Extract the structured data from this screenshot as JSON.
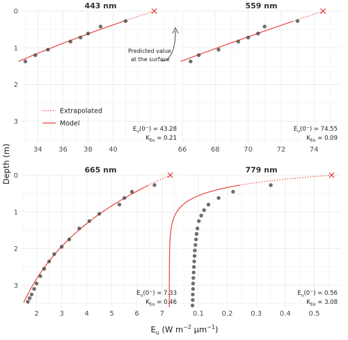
{
  "figure": {
    "ylabel": "Depth (m)",
    "xlabel_main": "E",
    "xlabel_sub": "u",
    "xlabel_units": " (W m",
    "xlabel_sup1": "−2",
    "xlabel_mid": " μm",
    "xlabel_sup2": "−1",
    "xlabel_end": ")"
  },
  "legend": {
    "position": "left, inside top-left panel",
    "items": [
      {
        "label": "Extrapolated",
        "style": "dotted",
        "color": "#e8413a"
      },
      {
        "label": "Model",
        "style": "solid",
        "color": "#e8413a"
      }
    ]
  },
  "callout": {
    "line1": "Predicted value",
    "line2": "at the surface"
  },
  "colors": {
    "model": "#e8413a",
    "points": "#444444",
    "grid": "#ebebeb"
  },
  "chart_data": [
    {
      "type": "scatter",
      "title": "443 nm",
      "xlim": [
        32.7,
        45.3
      ],
      "ylim": [
        0,
        3.6
      ],
      "y_reversed": true,
      "xticks": [
        34,
        36,
        38,
        40
      ],
      "yticks": [
        0,
        1,
        2,
        3
      ],
      "E0": 43.28,
      "K": 0.21,
      "annotation": {
        "e_main": "E",
        "e_sub": "u",
        "e_arg": "(0",
        "e_sup": "−",
        "e_close": ") = 43.28",
        "k_main": "K",
        "k_sub": "Eu",
        "k_val": " = 0.21"
      },
      "model_depth_range": [
        0.27,
        1.37
      ],
      "extrap_depth_range": [
        0,
        0.27
      ],
      "points": [
        {
          "x": 41.0,
          "y": 0.27
        },
        {
          "x": 39.0,
          "y": 0.42
        },
        {
          "x": 38.0,
          "y": 0.61
        },
        {
          "x": 37.4,
          "y": 0.72
        },
        {
          "x": 36.6,
          "y": 0.83
        },
        {
          "x": 34.8,
          "y": 1.05
        },
        {
          "x": 33.8,
          "y": 1.2
        },
        {
          "x": 33.0,
          "y": 1.37
        }
      ]
    },
    {
      "type": "scatter",
      "title": "559 nm",
      "xlim": [
        66.0,
        75.6
      ],
      "ylim": [
        0,
        3.6
      ],
      "y_reversed": true,
      "xticks": [
        66,
        68,
        70,
        72,
        74
      ],
      "yticks": [
        0,
        1,
        2,
        3
      ],
      "E0": 74.55,
      "K": 0.09,
      "annotation": {
        "e_main": "E",
        "e_sub": "u",
        "e_arg": "(0",
        "e_sup": "−",
        "e_close": ") = 74.55",
        "k_main": "K",
        "k_sub": "Eu",
        "k_val": " = 0.09"
      },
      "model_depth_range": [
        0.27,
        1.37
      ],
      "extrap_depth_range": [
        0,
        0.27
      ],
      "points": [
        {
          "x": 73.0,
          "y": 0.27
        },
        {
          "x": 71.0,
          "y": 0.42
        },
        {
          "x": 70.6,
          "y": 0.61
        },
        {
          "x": 70.0,
          "y": 0.72
        },
        {
          "x": 69.4,
          "y": 0.83
        },
        {
          "x": 68.2,
          "y": 1.05
        },
        {
          "x": 67.0,
          "y": 1.2
        },
        {
          "x": 66.5,
          "y": 1.37
        }
      ]
    },
    {
      "type": "scatter",
      "title": "665 nm",
      "xlim": [
        1.4,
        7.7
      ],
      "ylim": [
        0,
        3.6
      ],
      "y_reversed": true,
      "xticks": [
        2,
        3,
        4,
        5,
        6,
        7
      ],
      "yticks": [
        0,
        1,
        2,
        3
      ],
      "E0": 7.33,
      "K": 0.46,
      "annotation": {
        "e_main": "E",
        "e_sub": "u",
        "e_arg": "(0",
        "e_sup": "−",
        "e_close": ") = 7.33",
        "k_main": "K",
        "k_sub": "Eu",
        "k_val": " = 0.46"
      },
      "model_depth_range": [
        0.27,
        3.47
      ],
      "extrap_depth_range": [
        0,
        0.27
      ],
      "points": [
        {
          "x": 6.7,
          "y": 0.27
        },
        {
          "x": 5.8,
          "y": 0.45
        },
        {
          "x": 5.5,
          "y": 0.62
        },
        {
          "x": 5.3,
          "y": 0.8
        },
        {
          "x": 4.5,
          "y": 1.05
        },
        {
          "x": 4.1,
          "y": 1.25
        },
        {
          "x": 3.7,
          "y": 1.45
        },
        {
          "x": 3.3,
          "y": 1.75
        },
        {
          "x": 3.0,
          "y": 1.95
        },
        {
          "x": 2.7,
          "y": 2.15
        },
        {
          "x": 2.5,
          "y": 2.35
        },
        {
          "x": 2.3,
          "y": 2.55
        },
        {
          "x": 2.15,
          "y": 2.75
        },
        {
          "x": 2.0,
          "y": 2.95
        },
        {
          "x": 1.9,
          "y": 3.1
        },
        {
          "x": 1.8,
          "y": 3.25
        },
        {
          "x": 1.72,
          "y": 3.35
        },
        {
          "x": 1.65,
          "y": 3.45
        }
      ]
    },
    {
      "type": "scatter",
      "title": "779 nm",
      "xlim": [
        0.045,
        0.59
      ],
      "ylim": [
        0,
        3.6
      ],
      "y_reversed": true,
      "xticks": [
        0.1,
        0.2,
        0.3,
        0.4,
        0.5
      ],
      "yticks": [
        0,
        1,
        2,
        3
      ],
      "E0": 0.56,
      "K": 3.08,
      "annotation": {
        "e_main": "E",
        "e_sub": "u",
        "e_arg": "(0",
        "e_sup": "−",
        "e_close": ") = 0.56",
        "k_main": "K",
        "k_sub": "Eu",
        "k_val": " = 3.08"
      },
      "model_depth_range": [
        0.27,
        3.6
      ],
      "extrap_depth_range": [
        0,
        0.27
      ],
      "points": [
        {
          "x": 0.35,
          "y": 0.27
        },
        {
          "x": 0.22,
          "y": 0.45
        },
        {
          "x": 0.17,
          "y": 0.62
        },
        {
          "x": 0.135,
          "y": 0.8
        },
        {
          "x": 0.12,
          "y": 0.95
        },
        {
          "x": 0.11,
          "y": 1.1
        },
        {
          "x": 0.102,
          "y": 1.25
        },
        {
          "x": 0.097,
          "y": 1.45
        },
        {
          "x": 0.094,
          "y": 1.6
        },
        {
          "x": 0.092,
          "y": 1.75
        },
        {
          "x": 0.09,
          "y": 1.9
        },
        {
          "x": 0.088,
          "y": 2.05
        },
        {
          "x": 0.087,
          "y": 2.2
        },
        {
          "x": 0.086,
          "y": 2.35
        },
        {
          "x": 0.085,
          "y": 2.5
        },
        {
          "x": 0.084,
          "y": 2.65
        },
        {
          "x": 0.083,
          "y": 2.8
        },
        {
          "x": 0.082,
          "y": 2.95
        },
        {
          "x": 0.082,
          "y": 3.1
        },
        {
          "x": 0.081,
          "y": 3.25
        },
        {
          "x": 0.081,
          "y": 3.4
        },
        {
          "x": 0.08,
          "y": 3.55
        }
      ]
    }
  ]
}
